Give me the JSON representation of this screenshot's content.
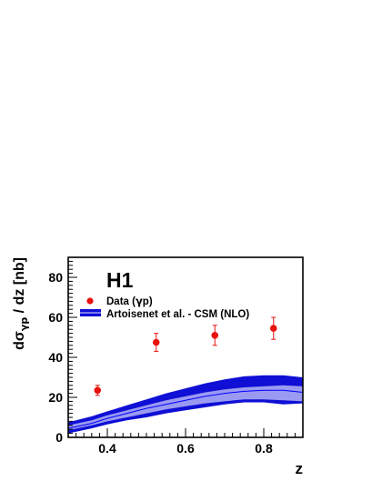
{
  "chart_data": {
    "type": "scatter",
    "logo": "H1",
    "xlabel": "z",
    "ylabel_main": "dσ",
    "ylabel_sub": "γp",
    "ylabel_tail": " / dz [nb]",
    "xlim": [
      0.3,
      0.9
    ],
    "ylim": [
      0,
      90
    ],
    "x_major_ticks": [
      0.4,
      0.6,
      0.8
    ],
    "x_tick_labels": [
      "0.4",
      "0.6",
      "0.8"
    ],
    "y_major_ticks": [
      0,
      20,
      40,
      60,
      80
    ],
    "y_tick_labels": [
      "0",
      "20",
      "40",
      "60",
      "80"
    ],
    "x_minor_step": 0.02,
    "y_minor_step": 2,
    "grid": false,
    "legend_placement": "top-left",
    "colors": {
      "data": "#e8130f",
      "band_outer": "#0f0fd6",
      "band_inner": "#9a9af2",
      "band_center": "#0000ff"
    },
    "series": [
      {
        "name": "Data (γp)",
        "legend_main": "Data (",
        "legend_symbol": "γ",
        "legend_tail": "p)",
        "kind": "points",
        "x": [
          0.375,
          0.525,
          0.675,
          0.825
        ],
        "y": [
          23.5,
          47.5,
          51.0,
          54.5
        ],
        "err": [
          2.5,
          4.5,
          5.0,
          5.5
        ]
      },
      {
        "name": "Artoisenet et al. - CSM (NLO)",
        "kind": "band",
        "x": [
          0.3,
          0.36,
          0.4,
          0.45,
          0.5,
          0.55,
          0.6,
          0.65,
          0.7,
          0.75,
          0.8,
          0.85,
          0.9
        ],
        "outer_low": [
          2.0,
          4.5,
          6.5,
          8.5,
          10.0,
          12.0,
          13.5,
          15.0,
          16.5,
          17.5,
          17.5,
          16.5,
          17.0
        ],
        "inner_low": [
          3.5,
          6.0,
          8.0,
          10.0,
          12.0,
          14.0,
          15.5,
          17.0,
          18.0,
          19.0,
          19.0,
          18.5,
          18.0
        ],
        "center": [
          4.5,
          7.0,
          9.5,
          12.0,
          14.5,
          16.5,
          18.5,
          20.5,
          22.0,
          23.0,
          23.5,
          23.5,
          22.5
        ],
        "inner_high": [
          6.0,
          8.5,
          11.0,
          13.5,
          16.0,
          18.5,
          20.5,
          22.5,
          24.0,
          25.0,
          25.5,
          26.0,
          25.5
        ],
        "outer_high": [
          7.5,
          10.5,
          13.0,
          16.0,
          19.0,
          22.0,
          24.5,
          27.0,
          29.0,
          30.5,
          31.0,
          31.0,
          30.0
        ]
      }
    ]
  }
}
